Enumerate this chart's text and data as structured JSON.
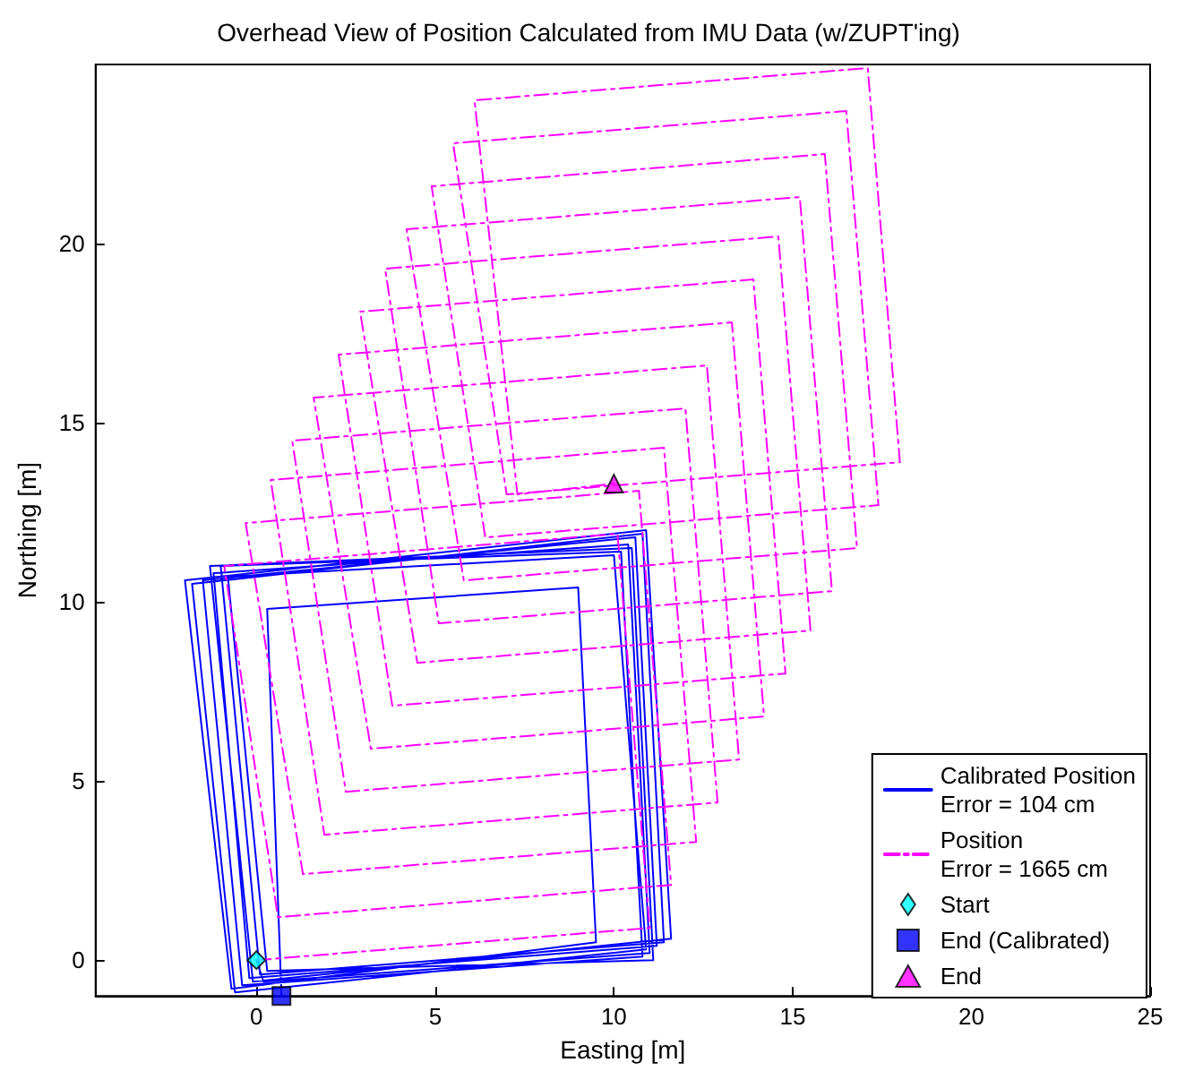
{
  "chart_data": {
    "type": "line",
    "title": "Overhead View of Position Calculated from IMU Data (w/ZUPT'ing)",
    "xlabel": "Easting [m]",
    "ylabel": "Northing [m]",
    "xlim": [
      -4.5,
      25
    ],
    "xticks": [
      0,
      5,
      10,
      15,
      20,
      25
    ],
    "ylim": [
      -1,
      25
    ],
    "yticks": [
      0,
      5,
      10,
      15,
      20
    ],
    "grid": false,
    "legend": "bottom right",
    "series": [
      {
        "name": "Calibrated Position\nError = 104 cm",
        "color": "#0000ff",
        "marker": "none",
        "line_style": "solid",
        "x": [
          0,
          0.2,
          11,
          10.4,
          -1.2,
          -0.2,
          11.2,
          10.6,
          -1.5,
          -0.4,
          10.8,
          10.2,
          -1.0,
          0.1,
          11.4,
          10.8,
          -1.8,
          -0.6,
          10.9,
          10.0,
          -0.8,
          0.3,
          11.1,
          10.5,
          -1.3,
          -0.1,
          11.6,
          10.9,
          -2.0,
          -0.7,
          9.5,
          9.0,
          0.3,
          0.7
        ],
        "values": [
          0,
          -0.6,
          0.2,
          11.6,
          10.8,
          -0.5,
          0.4,
          11.8,
          10.6,
          -0.7,
          0.1,
          11.4,
          11.0,
          -0.4,
          0.5,
          11.9,
          10.5,
          -0.9,
          0.3,
          11.3,
          10.7,
          -0.3,
          0.0,
          11.5,
          11.0,
          -0.6,
          0.6,
          12.0,
          10.6,
          -0.8,
          0.5,
          10.4,
          9.8,
          -1.0
        ]
      },
      {
        "name": "Position\nError = 1665 cm",
        "color": "#ff00ff",
        "marker": "none",
        "line_style": "dashed",
        "x": [
          0,
          11,
          10.1,
          -0.9,
          0.6,
          11.6,
          10.7,
          -0.3,
          1.3,
          12.3,
          11.4,
          0.4,
          1.9,
          12.9,
          12,
          1,
          2.5,
          13.5,
          12.6,
          1.6,
          3.2,
          14.2,
          13.3,
          2.3,
          3.8,
          14.8,
          13.9,
          2.9,
          4.5,
          15.5,
          14.6,
          3.6,
          5.1,
          16.1,
          15.2,
          4.2,
          5.8,
          16.8,
          15.9,
          4.9,
          6.4,
          17.4,
          16.5,
          5.5,
          7,
          18,
          17.1,
          6.1,
          7.3,
          10
        ],
        "values": [
          0,
          0.9,
          11.9,
          11,
          1.2,
          2.1,
          13.1,
          12.2,
          2.4,
          3.3,
          14.3,
          13.4,
          3.5,
          4.4,
          15.4,
          14.5,
          4.7,
          5.6,
          16.6,
          15.7,
          5.9,
          6.8,
          17.8,
          16.9,
          7.1,
          8,
          19,
          18.1,
          8.3,
          9.2,
          20.2,
          19.3,
          9.4,
          10.3,
          21.3,
          20.4,
          10.6,
          11.5,
          22.5,
          21.6,
          11.8,
          12.7,
          23.7,
          22.8,
          13,
          13.9,
          24.9,
          24,
          13,
          13.3
        ]
      },
      {
        "name": "Start",
        "type": "scatter",
        "color": "#00ffff",
        "marker": "diamond",
        "x": [
          0
        ],
        "values": [
          0
        ]
      },
      {
        "name": "End (Calibrated)",
        "type": "scatter",
        "color": "#0000ff",
        "marker": "square",
        "x": [
          0.7
        ],
        "values": [
          -1.0
        ]
      },
      {
        "name": "End",
        "type": "scatter",
        "color": "#ff00ff",
        "marker": "triangle",
        "x": [
          10
        ],
        "values": [
          13.3
        ]
      }
    ]
  }
}
